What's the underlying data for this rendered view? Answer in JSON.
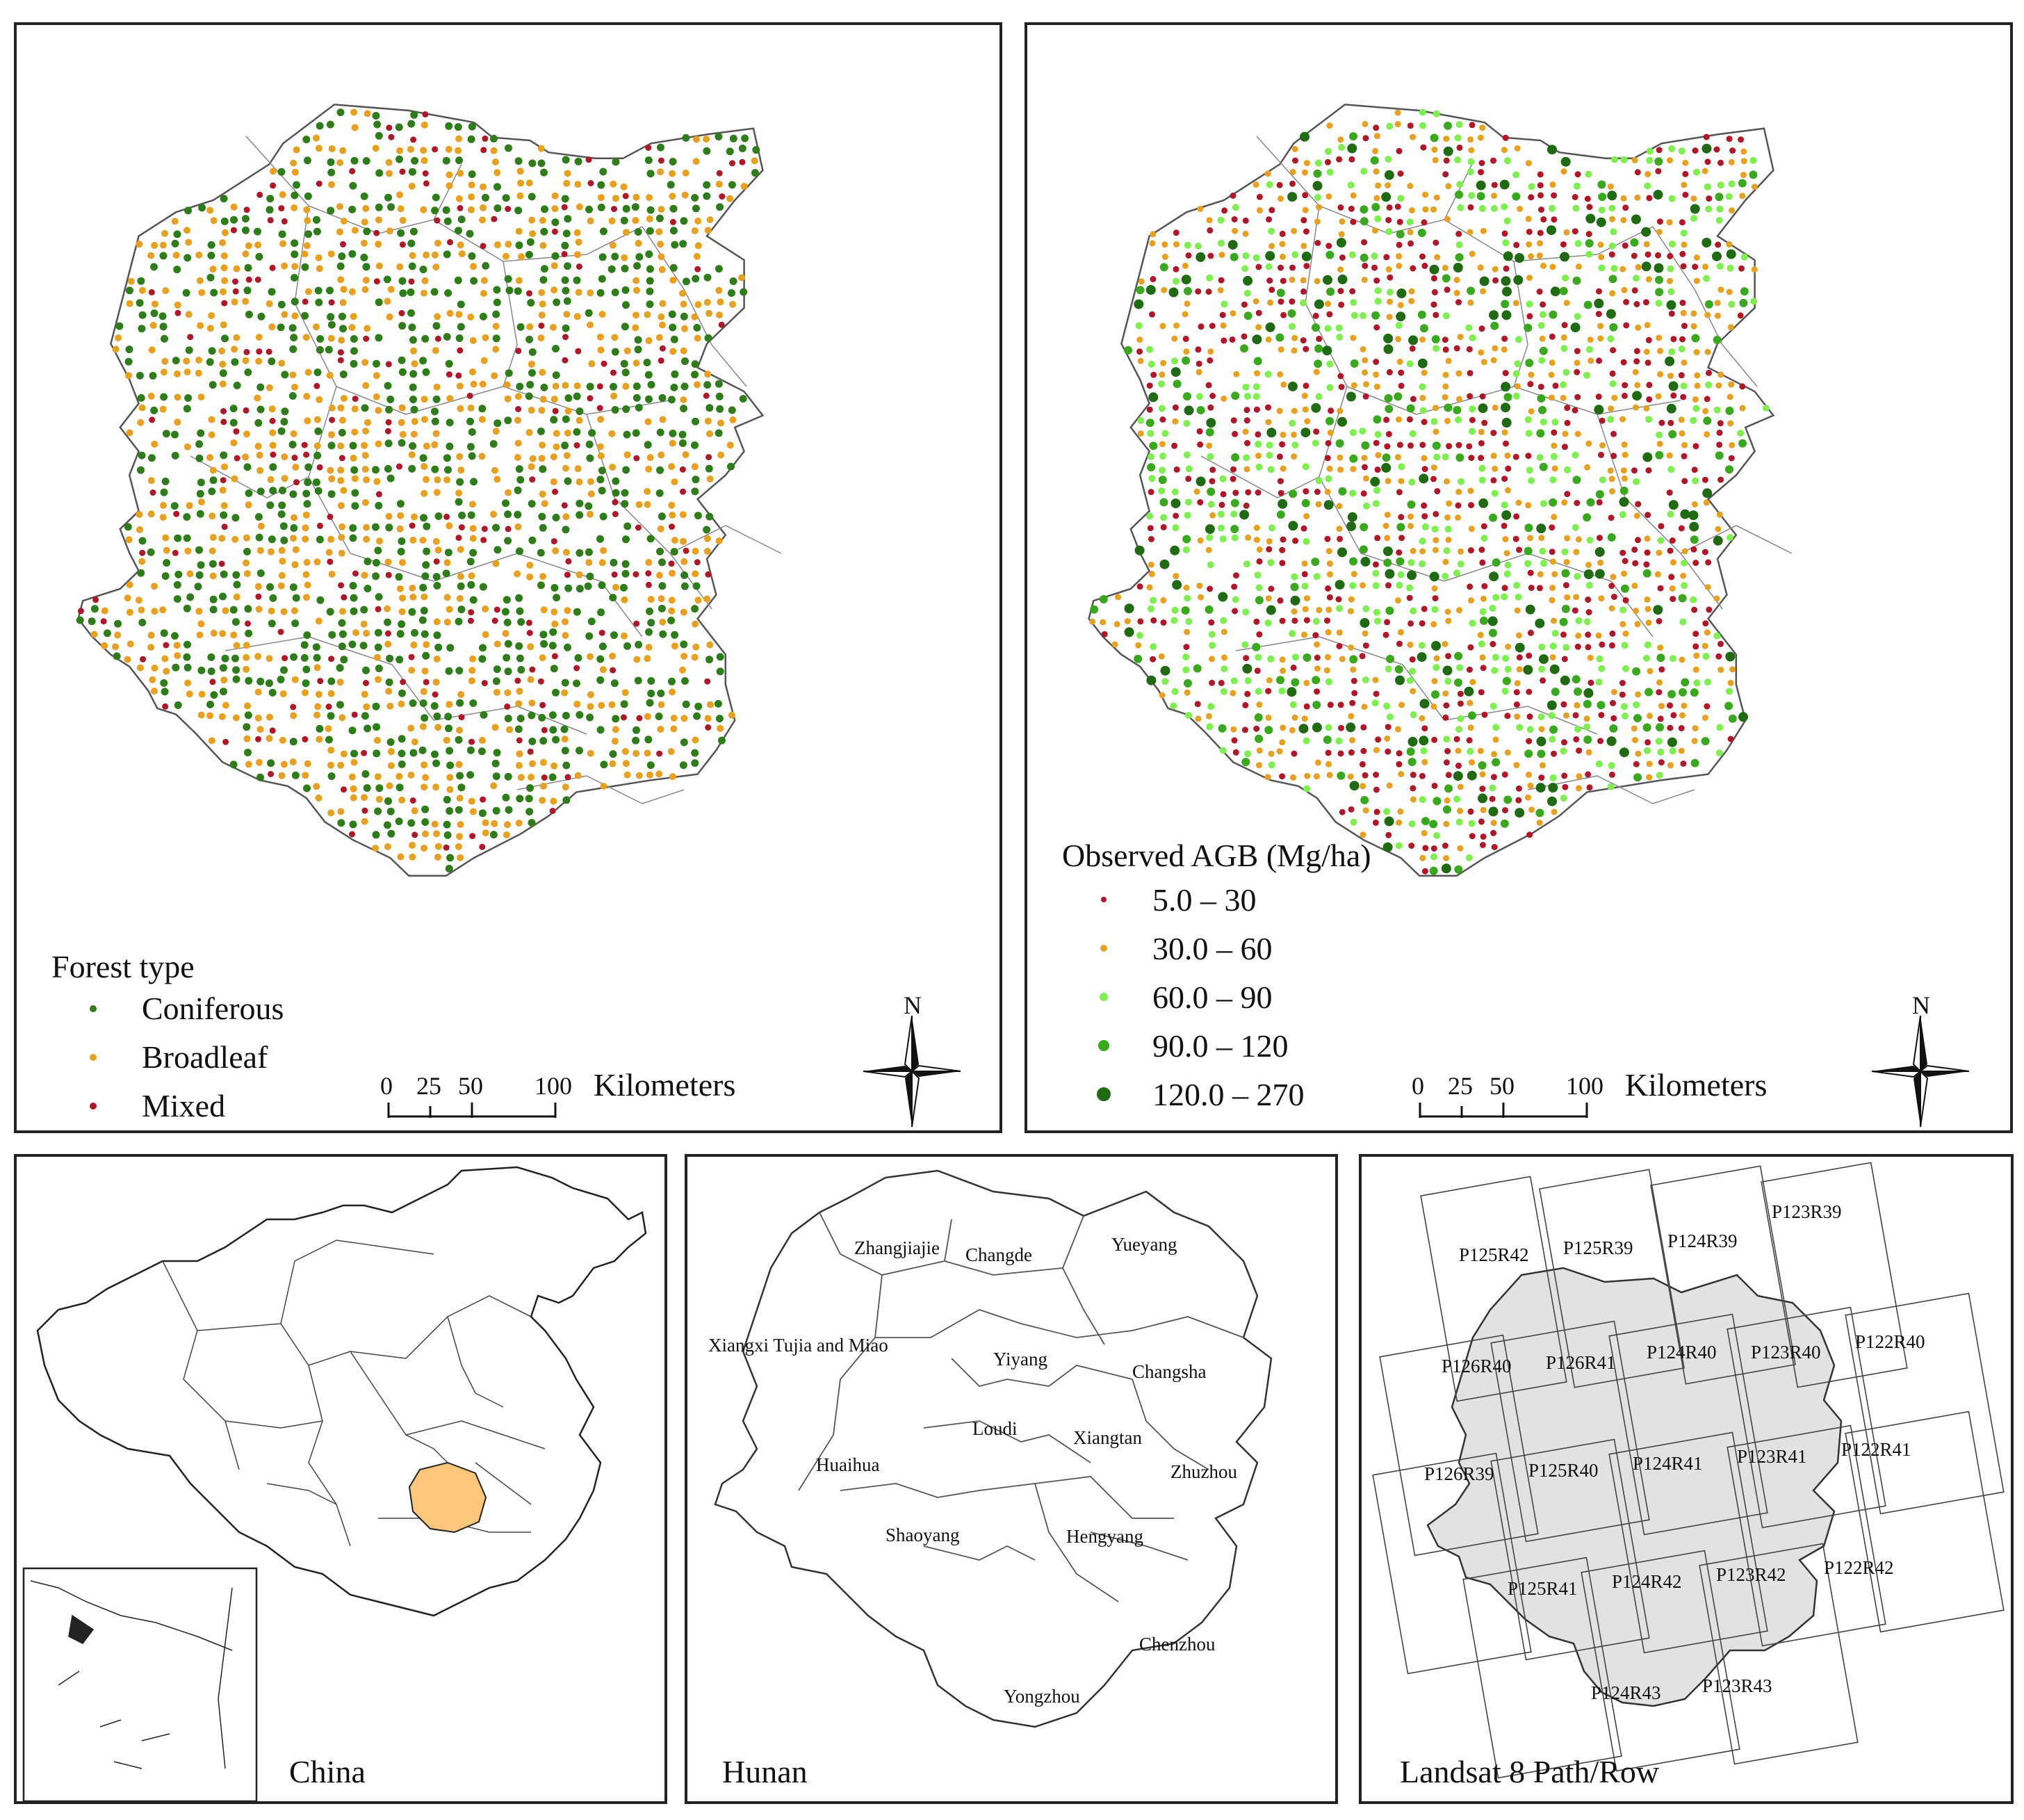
{
  "colors": {
    "coniferous": "#2e7d1a",
    "broadleaf": "#e8a020",
    "mixed": "#b0182a",
    "agb_1": "#b0182a",
    "agb_2": "#e8a020",
    "agb_3": "#7df050",
    "agb_4": "#3aa81e",
    "agb_5": "#1f6a12",
    "hunan_highlight": "#fcc77a",
    "landsat_fill": "#e2e2e2",
    "border": "#222222"
  },
  "forest_map": {
    "legend_title": "Forest type",
    "legend": [
      {
        "label": "Coniferous",
        "color_key": "coniferous"
      },
      {
        "label": "Broadleaf",
        "color_key": "broadleaf"
      },
      {
        "label": "Mixed",
        "color_key": "mixed"
      }
    ],
    "scale": {
      "ticks": [
        "0",
        "25",
        "50",
        "100"
      ],
      "unit": "Kilometers"
    },
    "north": "N"
  },
  "agb_map": {
    "legend_title": "Observed AGB (Mg/ha)",
    "legend": [
      {
        "label": "5.0 – 30",
        "color_key": "agb_1"
      },
      {
        "label": "30.0 – 60",
        "color_key": "agb_2"
      },
      {
        "label": "60.0 – 90",
        "color_key": "agb_3"
      },
      {
        "label": "90.0 – 120",
        "color_key": "agb_4"
      },
      {
        "label": "120.0 – 270",
        "color_key": "agb_5"
      }
    ],
    "scale": {
      "ticks": [
        "0",
        "25",
        "50",
        "100"
      ],
      "unit": "Kilometers"
    },
    "north": "N"
  },
  "china_map": {
    "label": "China"
  },
  "hunan_map": {
    "label": "Hunan",
    "cities": [
      "Zhangjiajie",
      "Changde",
      "Yueyang",
      "Xiangxi Tujia and Miao",
      "Yiyang",
      "Changsha",
      "Loudi",
      "Xiangtan",
      "Huaihua",
      "Zhuzhou",
      "Shaoyang",
      "Hengyang",
      "Chenzhou",
      "Yongzhou"
    ]
  },
  "landsat_map": {
    "label": "Landsat 8 Path/Row",
    "scenes": [
      "P123R39",
      "P125R42",
      "P125R39",
      "P124R39",
      "P126R40",
      "P126R41",
      "P124R40",
      "P123R40",
      "P122R40",
      "P126R39",
      "P125R40",
      "P124R41",
      "P123R41",
      "P122R41",
      "P125R41",
      "P124R42",
      "P123R42",
      "P122R42",
      "P124R43",
      "P123R43"
    ]
  }
}
